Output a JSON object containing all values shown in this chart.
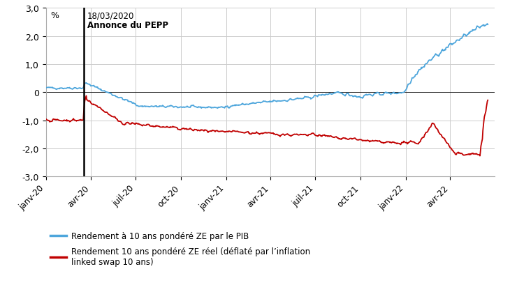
{
  "ylabel": "%",
  "ylim": [
    -3.0,
    3.0
  ],
  "yticks": [
    -3.0,
    -2.0,
    -1.0,
    0.0,
    1.0,
    2.0,
    3.0
  ],
  "ytick_labels": [
    "-3,0",
    "-2,0",
    "-1,0",
    "0",
    "1,0",
    "2,0",
    "3,0"
  ],
  "xtick_labels": [
    "janv-20",
    "avr-20",
    "juil-20",
    "oct-20",
    "janv-21",
    "avr-21",
    "juil-21",
    "oct-21",
    "janv-22",
    "avr-22"
  ],
  "vline_label_1": "18/03/2020",
  "vline_label_2": "Annonce du PEPP",
  "line_nominal_color": "#4EA6DC",
  "line_real_color": "#C00000",
  "legend_nominal": "Rendement à 10 ans pondéré ZE par le PIB",
  "legend_real": "Rendement 10 ans pondéré ZE réel (déflaté par l’inflation\nlinked swap 10 ans)",
  "background_color": "#ffffff",
  "grid_color": "#cccccc"
}
